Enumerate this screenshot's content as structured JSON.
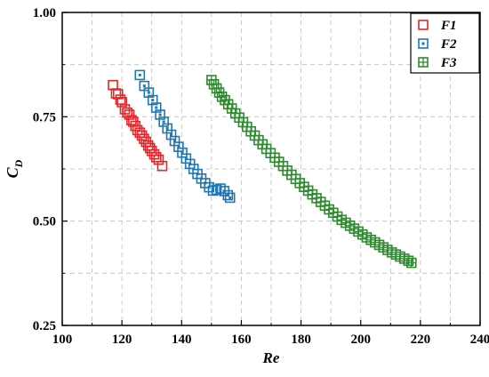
{
  "chart_data": {
    "type": "scatter",
    "title": "",
    "xlabel": "Re",
    "ylabel": "C",
    "ylabel_subscript": "D",
    "xlim": [
      100,
      240
    ],
    "ylim": [
      0.25,
      1.0
    ],
    "x_ticks": [
      100,
      120,
      140,
      160,
      180,
      200,
      220,
      240
    ],
    "x_tick_labels": [
      "100",
      "120",
      "140",
      "160",
      "180",
      "200",
      "220",
      "240"
    ],
    "y_ticks": [
      0.25,
      0.5,
      0.75,
      1.0
    ],
    "y_tick_labels": [
      "0.25",
      "0.50",
      "0.75",
      "1.00"
    ],
    "grid": true,
    "legend_position": "top-right",
    "series": [
      {
        "name": "F1",
        "color": "#e8262a",
        "marker": "open-square",
        "points": [
          [
            117.0,
            0.826
          ],
          [
            118.0,
            0.806
          ],
          [
            118.7,
            0.804
          ],
          [
            119.5,
            0.791
          ],
          [
            120.0,
            0.785
          ],
          [
            121.0,
            0.768
          ],
          [
            121.8,
            0.76
          ],
          [
            122.5,
            0.755
          ],
          [
            123.2,
            0.742
          ],
          [
            123.8,
            0.738
          ],
          [
            124.5,
            0.728
          ],
          [
            125.2,
            0.718
          ],
          [
            126.0,
            0.712
          ],
          [
            126.7,
            0.705
          ],
          [
            127.4,
            0.697
          ],
          [
            128.1,
            0.69
          ],
          [
            128.8,
            0.681
          ],
          [
            129.4,
            0.675
          ],
          [
            130.0,
            0.668
          ],
          [
            130.8,
            0.66
          ],
          [
            131.5,
            0.653
          ],
          [
            132.3,
            0.647
          ],
          [
            133.5,
            0.632
          ]
        ]
      },
      {
        "name": "F2",
        "color": "#1f77b4",
        "marker": "dotted-square",
        "points": [
          [
            126.0,
            0.85
          ],
          [
            127.5,
            0.824
          ],
          [
            129.0,
            0.808
          ],
          [
            130.3,
            0.79
          ],
          [
            131.5,
            0.772
          ],
          [
            132.8,
            0.755
          ],
          [
            134.0,
            0.738
          ],
          [
            135.2,
            0.722
          ],
          [
            136.5,
            0.707
          ],
          [
            137.7,
            0.692
          ],
          [
            139.0,
            0.678
          ],
          [
            140.2,
            0.664
          ],
          [
            141.5,
            0.65
          ],
          [
            142.8,
            0.637
          ],
          [
            144.0,
            0.625
          ],
          [
            145.3,
            0.613
          ],
          [
            146.6,
            0.602
          ],
          [
            147.9,
            0.591
          ],
          [
            149.2,
            0.581
          ],
          [
            150.5,
            0.573
          ],
          [
            151.7,
            0.575
          ],
          [
            153.0,
            0.578
          ],
          [
            154.3,
            0.572
          ],
          [
            155.5,
            0.562
          ],
          [
            156.2,
            0.556
          ]
        ]
      },
      {
        "name": "F3",
        "color": "#2e8b2e",
        "marker": "crossed-square",
        "points": [
          [
            150.0,
            0.838
          ],
          [
            150.8,
            0.828
          ],
          [
            151.7,
            0.818
          ],
          [
            152.6,
            0.808
          ],
          [
            153.5,
            0.798
          ],
          [
            154.5,
            0.79
          ],
          [
            155.6,
            0.78
          ],
          [
            156.8,
            0.77
          ],
          [
            158.0,
            0.758
          ],
          [
            159.3,
            0.748
          ],
          [
            160.6,
            0.737
          ],
          [
            161.9,
            0.726
          ],
          [
            163.2,
            0.715
          ],
          [
            164.5,
            0.705
          ],
          [
            165.8,
            0.694
          ],
          [
            167.1,
            0.684
          ],
          [
            168.4,
            0.673
          ],
          [
            169.8,
            0.663
          ],
          [
            171.2,
            0.652
          ],
          [
            172.6,
            0.642
          ],
          [
            174.0,
            0.632
          ],
          [
            175.4,
            0.621
          ],
          [
            176.8,
            0.611
          ],
          [
            178.2,
            0.601
          ],
          [
            179.6,
            0.591
          ],
          [
            181.0,
            0.582
          ],
          [
            182.4,
            0.573
          ],
          [
            183.8,
            0.564
          ],
          [
            185.2,
            0.555
          ],
          [
            186.6,
            0.546
          ],
          [
            188.0,
            0.537
          ],
          [
            189.4,
            0.528
          ],
          [
            190.8,
            0.52
          ],
          [
            192.2,
            0.511
          ],
          [
            193.6,
            0.503
          ],
          [
            195.0,
            0.496
          ],
          [
            196.4,
            0.489
          ],
          [
            197.8,
            0.482
          ],
          [
            199.2,
            0.475
          ],
          [
            200.6,
            0.468
          ],
          [
            202.0,
            0.461
          ],
          [
            203.4,
            0.455
          ],
          [
            204.8,
            0.449
          ],
          [
            206.2,
            0.443
          ],
          [
            207.6,
            0.437
          ],
          [
            209.0,
            0.431
          ],
          [
            210.4,
            0.425
          ],
          [
            211.8,
            0.42
          ],
          [
            213.2,
            0.415
          ],
          [
            214.6,
            0.41
          ],
          [
            216.0,
            0.405
          ],
          [
            217.0,
            0.4
          ]
        ]
      }
    ]
  }
}
